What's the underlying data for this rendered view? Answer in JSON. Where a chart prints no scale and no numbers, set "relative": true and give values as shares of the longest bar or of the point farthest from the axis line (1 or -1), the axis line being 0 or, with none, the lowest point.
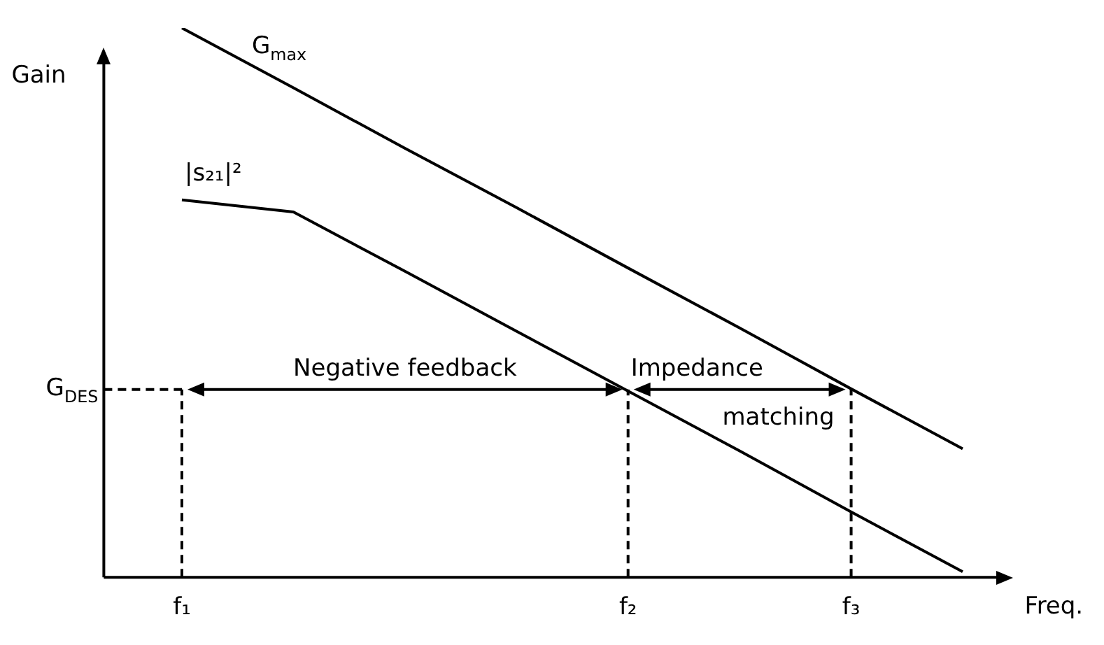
{
  "chart_data": {
    "type": "line",
    "relative": true,
    "xlabel": "Freq.",
    "ylabel": "Gain",
    "legend": false,
    "marker": "none",
    "line_style": "solid",
    "categories": [
      "f₁",
      null,
      null,
      null,
      "f₂",
      null,
      "f₃",
      null
    ],
    "series": [
      {
        "name": "G$_{max}$",
        "color": "#000000",
        "values": [
          1,
          0.891,
          0.781,
          0.673,
          0.563,
          0.454,
          0.343,
          0.234
        ]
      },
      {
        "name": "|s₂₁|²",
        "color": "#000000",
        "values": [
          0.687,
          0.665,
          0.557,
          0.448,
          0.339,
          0.23,
          0.119,
          0.01
        ]
      }
    ],
    "ref_lines": [
      {
        "axis": "y",
        "value": 0.342,
        "label": "G$_{DES}$",
        "line_style": "dashed",
        "color": "#000000"
      },
      {
        "axis": "x",
        "value": "f₁",
        "line_style": "dashed",
        "color": "#000000"
      },
      {
        "axis": "x",
        "value": "f₂",
        "line_style": "dashed",
        "color": "#000000"
      },
      {
        "axis": "x",
        "value": "f₃",
        "line_style": "dashed",
        "color": "#000000"
      }
    ],
    "annotations": [
      "Negative feedback",
      "Impedance matching"
    ]
  }
}
